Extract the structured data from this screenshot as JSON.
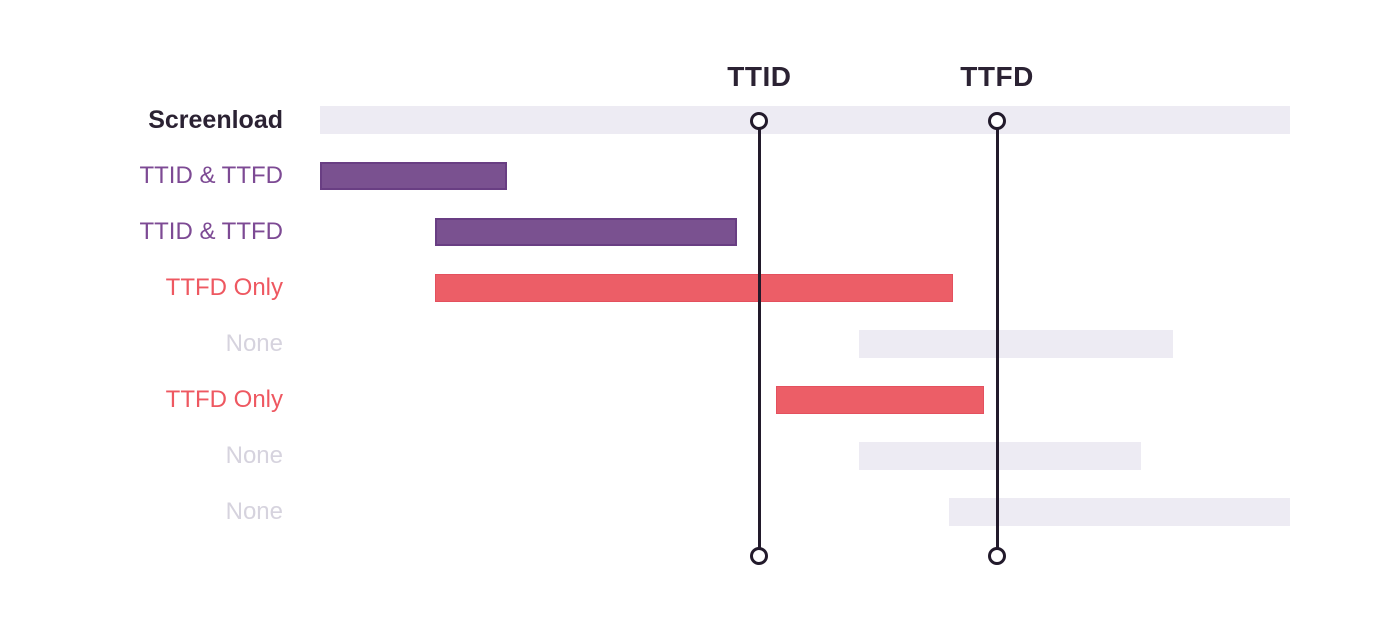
{
  "diagram": {
    "rows": [
      {
        "label": "Screenload",
        "kind": "screenload",
        "start": 0,
        "end": 100
      },
      {
        "label": "TTID & TTFD",
        "kind": "ttid-ttfd",
        "start": 0,
        "end": 19.3
      },
      {
        "label": "TTID & TTFD",
        "kind": "ttid-ttfd",
        "start": 11.9,
        "end": 43.0
      },
      {
        "label": "TTFD Only",
        "kind": "ttfd-only",
        "start": 11.9,
        "end": 65.3
      },
      {
        "label": "None",
        "kind": "none",
        "start": 55.6,
        "end": 87.9
      },
      {
        "label": "TTFD Only",
        "kind": "ttfd-only",
        "start": 47.0,
        "end": 68.5
      },
      {
        "label": "None",
        "kind": "none",
        "start": 55.6,
        "end": 84.6
      },
      {
        "label": "None",
        "kind": "none",
        "start": 64.8,
        "end": 100
      }
    ],
    "markers": [
      {
        "label": "TTID",
        "position": 45.3
      },
      {
        "label": "TTFD",
        "position": 69.8
      }
    ]
  },
  "colors": {
    "bar-neutral": "#edebf3",
    "bar-purple": "#7a5190",
    "bar-purple-border": "#693e83",
    "bar-red": "#ec5e67",
    "bar-red-border": "#e4505e",
    "label-dark": "#2b2233",
    "label-purple": "#7d4a94",
    "label-red": "#ee5861",
    "label-none": "#d6d3de",
    "marker": "#221a2b"
  }
}
